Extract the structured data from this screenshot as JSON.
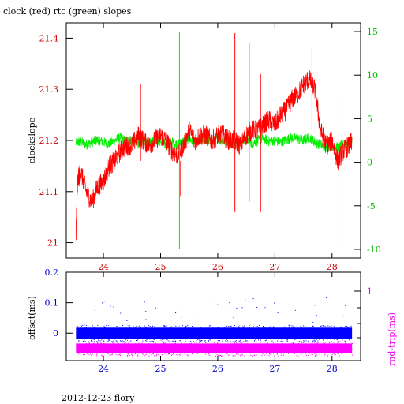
{
  "title": "clock (red) rtc (green) slopes",
  "footer": "2012-12-23 flory",
  "colors": {
    "clock": "#ff0000",
    "rtc": "#00ee00",
    "offset": "#0000ff",
    "rnd_trip": "#ff00ff",
    "axis_red": "#cc0000",
    "axis_green": "#00bb00",
    "axis_blue": "#0000cc",
    "axis_magenta": "#ee00ee"
  },
  "chart_data": [
    {
      "type": "line",
      "title": "clock (red) rtc (green) slopes",
      "ylabel": "clockslope",
      "x_ticks": [
        "24",
        "25",
        "26",
        "27",
        "28"
      ],
      "x_tick_values": [
        24,
        25,
        26,
        27,
        28
      ],
      "xlim": [
        23.35,
        28.5
      ],
      "ylim_left": [
        20.97,
        21.43
      ],
      "y_ticks_left": [
        "21",
        "21.1",
        "21.2",
        "21.3",
        "21.4"
      ],
      "y_tick_values_left": [
        21.0,
        21.1,
        21.2,
        21.3,
        21.4
      ],
      "ylim_right": [
        -11,
        16
      ],
      "y_ticks_right": [
        "-10",
        "-5",
        "0",
        "5",
        "10",
        "15"
      ],
      "y_tick_values_right": [
        -10,
        -5,
        0,
        5,
        10,
        15
      ],
      "series": [
        {
          "name": "clock",
          "axis": "left",
          "x": [
            23.52,
            23.55,
            23.6,
            23.7,
            23.8,
            23.9,
            24.0,
            24.1,
            24.2,
            24.3,
            24.4,
            24.5,
            24.6,
            24.7,
            24.8,
            24.9,
            25.0,
            25.1,
            25.2,
            25.3,
            25.4,
            25.5,
            25.6,
            25.7,
            25.8,
            25.9,
            26.0,
            26.1,
            26.2,
            26.3,
            26.4,
            26.5,
            26.6,
            26.7,
            26.8,
            26.9,
            27.0,
            27.1,
            27.2,
            27.3,
            27.4,
            27.5,
            27.6,
            27.7,
            27.8,
            27.9,
            28.0,
            28.1,
            28.2,
            28.3,
            28.35
          ],
          "values": [
            21.02,
            21.12,
            21.14,
            21.1,
            21.08,
            21.11,
            21.12,
            21.15,
            21.16,
            21.18,
            21.19,
            21.19,
            21.21,
            21.2,
            21.19,
            21.2,
            21.21,
            21.2,
            21.18,
            21.17,
            21.19,
            21.22,
            21.2,
            21.21,
            21.21,
            21.2,
            21.21,
            21.21,
            21.2,
            21.2,
            21.19,
            21.21,
            21.22,
            21.22,
            21.23,
            21.24,
            21.23,
            21.25,
            21.26,
            21.28,
            21.29,
            21.31,
            21.32,
            21.3,
            21.22,
            21.19,
            21.2,
            21.16,
            21.18,
            21.19,
            21.2
          ]
        },
        {
          "name": "rtc",
          "axis": "right",
          "x": [
            23.52,
            23.6,
            23.7,
            23.8,
            23.9,
            24.0,
            24.1,
            24.2,
            24.3,
            24.4,
            24.5,
            24.6,
            24.7,
            24.8,
            24.9,
            25.0,
            25.1,
            25.2,
            25.3,
            25.4,
            25.5,
            25.6,
            25.7,
            25.8,
            25.9,
            26.0,
            26.1,
            26.2,
            26.3,
            26.4,
            26.5,
            26.6,
            26.7,
            26.8,
            26.9,
            27.0,
            27.1,
            27.2,
            27.3,
            27.4,
            27.5,
            27.6,
            27.7,
            27.8,
            27.9,
            28.0,
            28.1,
            28.2,
            28.3,
            28.35
          ],
          "values": [
            2.2,
            2.4,
            2.0,
            2.3,
            2.6,
            2.3,
            2.1,
            2.5,
            2.8,
            2.4,
            2.6,
            2.2,
            2.5,
            2.3,
            2.6,
            2.4,
            1.9,
            2.3,
            2.0,
            2.4,
            2.7,
            2.2,
            2.5,
            2.6,
            2.3,
            2.8,
            2.4,
            2.5,
            2.0,
            2.4,
            2.6,
            2.2,
            2.5,
            2.7,
            2.4,
            2.5,
            2.3,
            2.6,
            2.8,
            2.7,
            2.5,
            2.9,
            2.3,
            2.0,
            1.7,
            1.9,
            1.7,
            2.0,
            2.4,
            2.6
          ]
        }
      ],
      "spikes": [
        {
          "series": "rtc",
          "x": 25.33,
          "high": 15.0,
          "low": -10.0
        },
        {
          "series": "clock",
          "x": 26.3,
          "high": 21.41,
          "low": 21.06
        },
        {
          "series": "clock",
          "x": 26.55,
          "high": 21.39,
          "low": 21.08
        },
        {
          "series": "clock",
          "x": 26.75,
          "high": 21.33,
          "low": 21.06
        },
        {
          "series": "clock",
          "x": 28.12,
          "high": 21.29,
          "low": 20.99
        },
        {
          "series": "clock",
          "x": 27.65,
          "high": 21.38,
          "low": 21.22
        },
        {
          "series": "clock",
          "x": 25.35,
          "high": 21.16,
          "low": 21.09
        },
        {
          "series": "clock",
          "x": 24.65,
          "high": 21.31,
          "low": 21.16
        }
      ]
    },
    {
      "type": "scatter",
      "ylabel_left": "offset(ms)",
      "ylabel_right": "rnd-trip(ms)",
      "x_ticks": [
        "24",
        "25",
        "26",
        "27",
        "28"
      ],
      "x_tick_values": [
        24,
        25,
        26,
        27,
        28
      ],
      "xlim": [
        23.35,
        28.5
      ],
      "ylim_left": [
        -0.09,
        0.2
      ],
      "y_ticks_left": [
        "0",
        "0.1",
        "0.2"
      ],
      "y_tick_values_left": [
        0,
        0.1,
        0.2
      ],
      "y_ticks_right": [
        "1"
      ],
      "series": [
        {
          "name": "offset",
          "band_center": 0.0,
          "band_halfwidth": 0.018,
          "x_range": [
            23.52,
            28.35
          ]
        },
        {
          "name": "rnd-trip",
          "band_center": -0.05,
          "band_halfwidth": 0.016,
          "x_range": [
            23.52,
            28.35
          ]
        }
      ]
    }
  ]
}
